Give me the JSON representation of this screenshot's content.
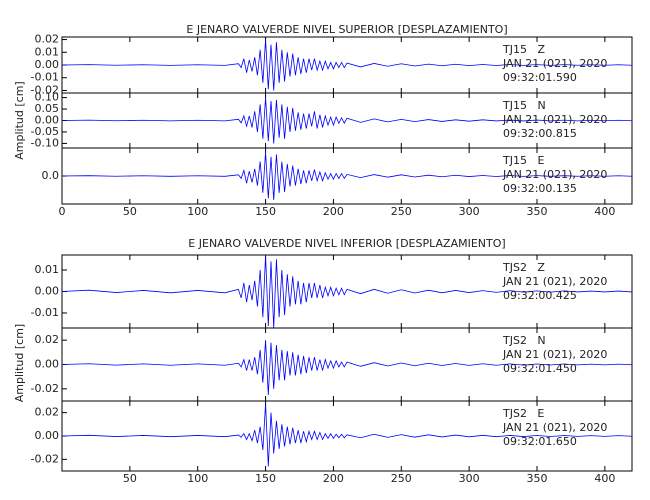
{
  "chart_data": [
    {
      "type": "line",
      "title": "E JENARO VALVERDE NIVEL SUPERIOR [DESPLAZAMIENTO]",
      "ylabel": "Amplitud [cm]",
      "xlim": [
        0,
        420
      ],
      "xticks": [
        0,
        50,
        100,
        150,
        200,
        250,
        300,
        350,
        400
      ],
      "x": [
        0,
        20,
        40,
        60,
        80,
        100,
        120,
        130,
        132,
        134,
        136,
        138,
        140,
        142,
        144,
        146,
        148,
        150,
        152,
        154,
        156,
        158,
        160,
        162,
        164,
        166,
        168,
        170,
        172,
        174,
        176,
        178,
        180,
        182,
        184,
        186,
        188,
        190,
        192,
        194,
        196,
        198,
        200,
        202,
        204,
        206,
        208,
        210,
        220,
        230,
        240,
        250,
        260,
        270,
        280,
        290,
        300,
        310,
        320,
        330,
        340,
        350,
        360,
        370,
        380,
        390,
        400,
        410,
        420
      ],
      "panels": [
        {
          "ylim": [
            -0.022,
            0.022
          ],
          "yticks": [
            0.02,
            0.01,
            {
              "value": 0,
              "label": "0.00"
            },
            -0.01,
            -0.02
          ],
          "color": "#0000ff",
          "annotation": [
            "TJ15   Z",
            "JAN 21 (021), 2020",
            "09:32:01.590"
          ],
          "values": [
            0,
            0.0003,
            -0.0002,
            0.0002,
            -0.0003,
            0.0002,
            -0.0003,
            0.001,
            -0.002,
            0.005,
            -0.006,
            0.004,
            -0.005,
            0.006,
            -0.008,
            0.012,
            -0.014,
            0.02,
            -0.019,
            0.016,
            -0.02,
            0.018,
            -0.014,
            0.012,
            -0.013,
            0.01,
            -0.009,
            0.009,
            -0.008,
            0.006,
            -0.007,
            0.005,
            -0.006,
            0.005,
            -0.004,
            0.005,
            -0.004,
            0.003,
            -0.004,
            0.003,
            -0.003,
            0.002,
            -0.003,
            0.002,
            -0.002,
            0.002,
            -0.002,
            0.0015,
            -0.0015,
            0.0012,
            -0.001,
            0.001,
            -0.0008,
            0.0007,
            -0.0006,
            0.0006,
            -0.0005,
            0.0004,
            -0.0004,
            0.0004,
            -0.0003,
            0.0003,
            -0.0003,
            0.0003,
            -0.0002,
            0.0002,
            -0.0002,
            0.0002,
            -0.0002
          ]
        },
        {
          "ylim": [
            -0.12,
            0.12
          ],
          "yticks": [
            {
              "value": 0.1,
              "label": "0.10"
            },
            0.05,
            {
              "value": 0,
              "label": "0.00"
            },
            -0.05,
            {
              "value": -0.1,
              "label": "-0.10"
            }
          ],
          "color": "#0000ff",
          "annotation": [
            "TJ15   N",
            "JAN 21 (021), 2020",
            "09:32:00.815"
          ],
          "values": [
            0,
            0.0015,
            -0.001,
            0.001,
            -0.0015,
            0.001,
            -0.0015,
            0.005,
            -0.01,
            0.02,
            -0.025,
            0.02,
            -0.03,
            0.04,
            -0.05,
            0.07,
            -0.08,
            0.1,
            -0.09,
            0.085,
            -0.1,
            0.09,
            -0.075,
            0.07,
            -0.08,
            0.06,
            -0.05,
            0.055,
            -0.045,
            0.035,
            -0.04,
            0.03,
            -0.035,
            0.03,
            -0.025,
            0.04,
            -0.035,
            0.025,
            -0.03,
            0.02,
            -0.02,
            0.015,
            -0.02,
            0.015,
            -0.012,
            0.012,
            -0.012,
            0.01,
            -0.008,
            0.007,
            -0.006,
            0.005,
            -0.005,
            0.004,
            -0.004,
            0.003,
            -0.003,
            0.003,
            -0.002,
            0.002,
            -0.002,
            0.002,
            -0.0015,
            0.0015,
            -0.0015,
            0.001,
            -0.001,
            0.001,
            -0.001
          ]
        },
        {
          "ylim": [
            -0.35,
            0.35
          ],
          "yticks": [
            {
              "value": 0,
              "label": "0.0"
            }
          ],
          "color": "#0000ff",
          "annotation": [
            "TJ15   E",
            "JAN 21 (021), 2020",
            "09:32:00.135"
          ],
          "values": [
            0,
            0.004,
            -0.003,
            0.003,
            -0.004,
            0.003,
            -0.004,
            0.015,
            -0.03,
            0.07,
            -0.09,
            0.06,
            -0.08,
            0.09,
            -0.12,
            0.18,
            -0.21,
            0.3,
            -0.28,
            0.24,
            -0.3,
            0.27,
            -0.21,
            0.18,
            -0.2,
            0.15,
            -0.13,
            0.13,
            -0.12,
            0.09,
            -0.1,
            0.07,
            -0.09,
            0.07,
            -0.06,
            0.08,
            -0.06,
            0.05,
            -0.06,
            0.04,
            -0.04,
            0.03,
            -0.04,
            0.03,
            -0.03,
            0.03,
            -0.03,
            0.02,
            -0.02,
            0.018,
            -0.015,
            0.015,
            -0.012,
            0.01,
            -0.009,
            0.009,
            -0.007,
            0.006,
            -0.006,
            0.006,
            -0.005,
            0.005,
            -0.004,
            0.004,
            -0.003,
            0.003,
            -0.003,
            0.003,
            -0.003
          ]
        }
      ]
    },
    {
      "type": "line",
      "title": "E JENARO VALVERDE NIVEL INFERIOR [DESPLAZAMIENTO]",
      "ylabel": "Amplitud [cm]",
      "xlim": [
        0,
        420
      ],
      "xticks": [
        50,
        100,
        150,
        200,
        250,
        300,
        350,
        400
      ],
      "x": [
        0,
        20,
        40,
        60,
        80,
        100,
        120,
        130,
        132,
        134,
        136,
        138,
        140,
        142,
        144,
        146,
        148,
        150,
        152,
        154,
        156,
        158,
        160,
        162,
        164,
        166,
        168,
        170,
        172,
        174,
        176,
        178,
        180,
        182,
        184,
        186,
        188,
        190,
        192,
        194,
        196,
        198,
        200,
        202,
        204,
        206,
        208,
        210,
        220,
        230,
        240,
        250,
        260,
        270,
        280,
        290,
        300,
        310,
        320,
        330,
        340,
        350,
        360,
        370,
        380,
        390,
        400,
        410,
        420
      ],
      "panels": [
        {
          "ylim": [
            -0.017,
            0.017
          ],
          "yticks": [
            0.01,
            {
              "value": 0,
              "label": "0.00"
            },
            -0.01
          ],
          "color": "#0000ff",
          "annotation": [
            "TJS2   Z",
            "JAN 21 (021), 2020",
            "09:32:00.425"
          ],
          "values": [
            0,
            0.0006,
            -0.0005,
            0.0005,
            -0.0006,
            0.0005,
            -0.0006,
            0.001,
            -0.003,
            0.004,
            -0.005,
            0.003,
            -0.004,
            0.005,
            -0.007,
            0.01,
            -0.012,
            0.017,
            -0.016,
            0.014,
            -0.017,
            0.015,
            -0.012,
            0.01,
            -0.011,
            0.008,
            -0.007,
            0.007,
            -0.006,
            0.005,
            -0.006,
            0.004,
            -0.005,
            0.004,
            -0.003,
            0.004,
            -0.003,
            0.003,
            -0.003,
            0.002,
            -0.002,
            0.002,
            -0.002,
            0.0015,
            -0.0015,
            0.0015,
            -0.0015,
            0.001,
            -0.001,
            0.001,
            -0.0008,
            0.0008,
            -0.0007,
            0.0006,
            -0.0006,
            0.0005,
            -0.0005,
            0.0004,
            -0.0004,
            0.0004,
            -0.0003,
            0.0003,
            -0.0003,
            0.0003,
            -0.0002,
            0.0002,
            -0.0002,
            0.0002,
            -0.0002
          ]
        },
        {
          "ylim": [
            -0.03,
            0.03
          ],
          "yticks": [
            0.02,
            {
              "value": 0,
              "label": "0.00"
            },
            -0.02
          ],
          "color": "#0000ff",
          "annotation": [
            "TJS2   N",
            "JAN 21 (021), 2020",
            "09:32:01.450"
          ],
          "values": [
            0,
            0.0006,
            -0.0005,
            0.0005,
            -0.0006,
            0.0005,
            -0.0006,
            0.001,
            -0.002,
            0.004,
            -0.005,
            0.004,
            -0.005,
            0.006,
            -0.008,
            0.012,
            -0.015,
            0.02,
            -0.025,
            0.018,
            -0.02,
            0.016,
            -0.013,
            0.012,
            -0.013,
            0.011,
            -0.009,
            0.01,
            -0.009,
            0.008,
            -0.008,
            0.007,
            -0.007,
            0.006,
            -0.005,
            0.006,
            -0.005,
            0.004,
            -0.005,
            0.004,
            -0.003,
            0.003,
            -0.003,
            0.003,
            -0.002,
            0.002,
            -0.002,
            0.002,
            -0.0015,
            0.0015,
            -0.0012,
            0.0012,
            -0.001,
            0.001,
            -0.0008,
            0.0008,
            -0.0007,
            0.0006,
            -0.0006,
            0.0005,
            -0.0005,
            0.0004,
            -0.0004,
            0.0004,
            -0.0003,
            0.0003,
            -0.0003,
            0.0003,
            -0.0002
          ]
        },
        {
          "ylim": [
            -0.03,
            0.03
          ],
          "yticks": [
            0.02,
            {
              "value": 0,
              "label": "0.00"
            },
            -0.02
          ],
          "color": "#0000ff",
          "annotation": [
            "TJS2   E",
            "JAN 21 (021), 2020",
            "09:32:01.650"
          ],
          "values": [
            0,
            0.0006,
            -0.0005,
            0.0005,
            -0.0006,
            0.0005,
            -0.0006,
            0.0008,
            -0.001,
            0.002,
            -0.003,
            0.002,
            -0.004,
            0.005,
            -0.006,
            0.008,
            -0.012,
            0.028,
            -0.026,
            0.02,
            -0.015,
            0.013,
            -0.011,
            0.01,
            -0.009,
            0.008,
            -0.007,
            0.007,
            -0.006,
            0.005,
            -0.006,
            0.004,
            -0.005,
            0.004,
            -0.003,
            0.004,
            -0.003,
            0.003,
            -0.003,
            0.002,
            -0.002,
            0.002,
            -0.002,
            0.0015,
            -0.0015,
            0.0015,
            -0.0015,
            0.001,
            -0.0015,
            0.0015,
            -0.0012,
            0.0012,
            -0.001,
            0.001,
            -0.0008,
            0.0008,
            -0.0007,
            0.0006,
            -0.0006,
            0.0005,
            -0.0005,
            0.0004,
            -0.0004,
            0.0004,
            -0.0003,
            0.0003,
            -0.0003,
            0.0003,
            -0.0002
          ]
        }
      ]
    }
  ]
}
